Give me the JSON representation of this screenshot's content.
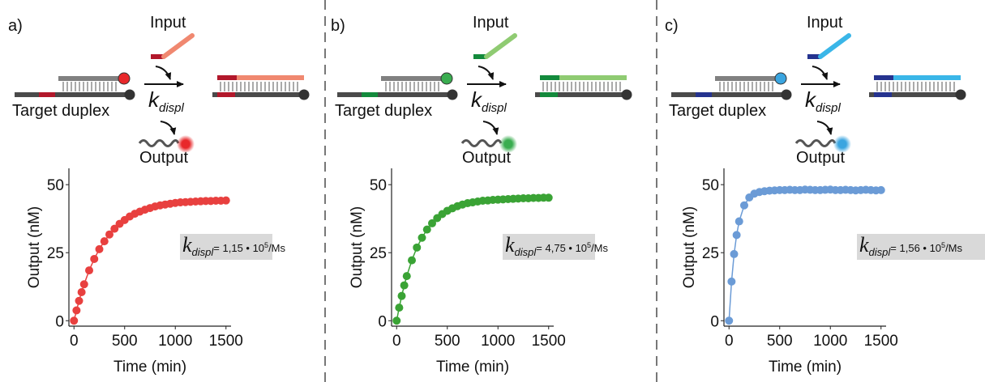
{
  "panels": [
    {
      "label": "a)",
      "input": "Input",
      "target": "Target duplex",
      "k": "k",
      "k_sub": "displ",
      "output": "Output"
    },
    {
      "label": "b)",
      "input": "Input",
      "target": "Target duplex",
      "k": "k",
      "k_sub": "displ",
      "output": "Output"
    },
    {
      "label": "c)",
      "input": "Input",
      "target": "Target duplex",
      "k": "k",
      "k_sub": "displ",
      "output": "Output"
    }
  ],
  "chart_data": [
    {
      "type": "scatter",
      "line": true,
      "color": "#e8403f",
      "xlabel": "Time (min)",
      "ylabel": "Output (nM)",
      "x": [
        0,
        25,
        50,
        75,
        100,
        150,
        200,
        250,
        300,
        350,
        400,
        450,
        500,
        550,
        600,
        650,
        700,
        750,
        800,
        850,
        900,
        950,
        1000,
        1050,
        1100,
        1150,
        1200,
        1250,
        1300,
        1350,
        1400,
        1450,
        1500
      ],
      "values": [
        0,
        3.8,
        7.3,
        10.5,
        13.4,
        18.5,
        22.7,
        26.3,
        29.2,
        31.7,
        33.8,
        35.6,
        37.0,
        38.3,
        39.3,
        40.1,
        40.8,
        41.4,
        42.0,
        42.4,
        42.7,
        43.0,
        43.3,
        43.5,
        43.6,
        43.7,
        43.8,
        43.9,
        44.0,
        44.0,
        44.1,
        44.1,
        44.2
      ],
      "xlim": [
        -50,
        1550
      ],
      "ylim": [
        -2,
        56
      ],
      "xticks": [
        0,
        500,
        1000,
        1500
      ],
      "yticks": [
        0,
        25,
        50
      ],
      "annotation": {
        "k": "k",
        "sub": "displ",
        "text": "= 1,15 • 10",
        "sup": "5",
        "unit": "/Ms"
      }
    },
    {
      "type": "scatter",
      "line": true,
      "color": "#3aa335",
      "xlabel": "Time (min)",
      "ylabel": "Output (nM)",
      "x": [
        0,
        25,
        50,
        75,
        100,
        150,
        200,
        250,
        300,
        350,
        400,
        450,
        500,
        550,
        600,
        650,
        700,
        750,
        800,
        850,
        900,
        950,
        1000,
        1050,
        1100,
        1150,
        1200,
        1250,
        1300,
        1350,
        1400,
        1450,
        1500
      ],
      "values": [
        0,
        4.8,
        9.1,
        13.0,
        16.4,
        22.2,
        26.9,
        30.5,
        33.5,
        35.8,
        37.7,
        39.2,
        40.4,
        41.3,
        42.1,
        42.7,
        43.2,
        43.5,
        43.8,
        44.1,
        44.2,
        44.4,
        44.5,
        44.6,
        44.7,
        44.8,
        44.9,
        45.0,
        45.0,
        45.1,
        45.1,
        45.2,
        45.2
      ],
      "xlim": [
        -50,
        1550
      ],
      "ylim": [
        -2,
        56
      ],
      "xticks": [
        0,
        500,
        1000,
        1500
      ],
      "yticks": [
        0,
        25,
        50
      ],
      "annotation": {
        "k": "k",
        "sub": "displ",
        "text": "= 4,75 • 10",
        "sup": "5",
        "unit": "/Ms"
      }
    },
    {
      "type": "scatter",
      "line": true,
      "color": "#6b9bd6",
      "xlabel": "Time (min)",
      "ylabel": "Output (nM)",
      "x": [
        0,
        25,
        50,
        75,
        100,
        150,
        200,
        250,
        300,
        350,
        400,
        450,
        500,
        550,
        600,
        650,
        700,
        750,
        800,
        850,
        900,
        950,
        1000,
        1050,
        1100,
        1150,
        1200,
        1250,
        1300,
        1350,
        1400,
        1450,
        1500
      ],
      "values": [
        0,
        14.4,
        24.5,
        31.5,
        36.5,
        42.4,
        45.3,
        46.7,
        47.3,
        47.6,
        47.8,
        47.9,
        48.0,
        48.0,
        48.1,
        48.0,
        48.0,
        48.2,
        48.1,
        48.0,
        48.0,
        48.1,
        48.2,
        48.0,
        48.0,
        48.1,
        48.0,
        47.9,
        48.0,
        48.1,
        48.0,
        47.9,
        48.0
      ],
      "xlim": [
        -50,
        1550
      ],
      "ylim": [
        -2,
        56
      ],
      "xticks": [
        0,
        500,
        1000,
        1500
      ],
      "yticks": [
        0,
        25,
        50
      ],
      "annotation": {
        "k": "k",
        "sub": "displ",
        "text": "= 1,56 • 10",
        "sup": "5",
        "unit": "/Ms"
      }
    }
  ]
}
